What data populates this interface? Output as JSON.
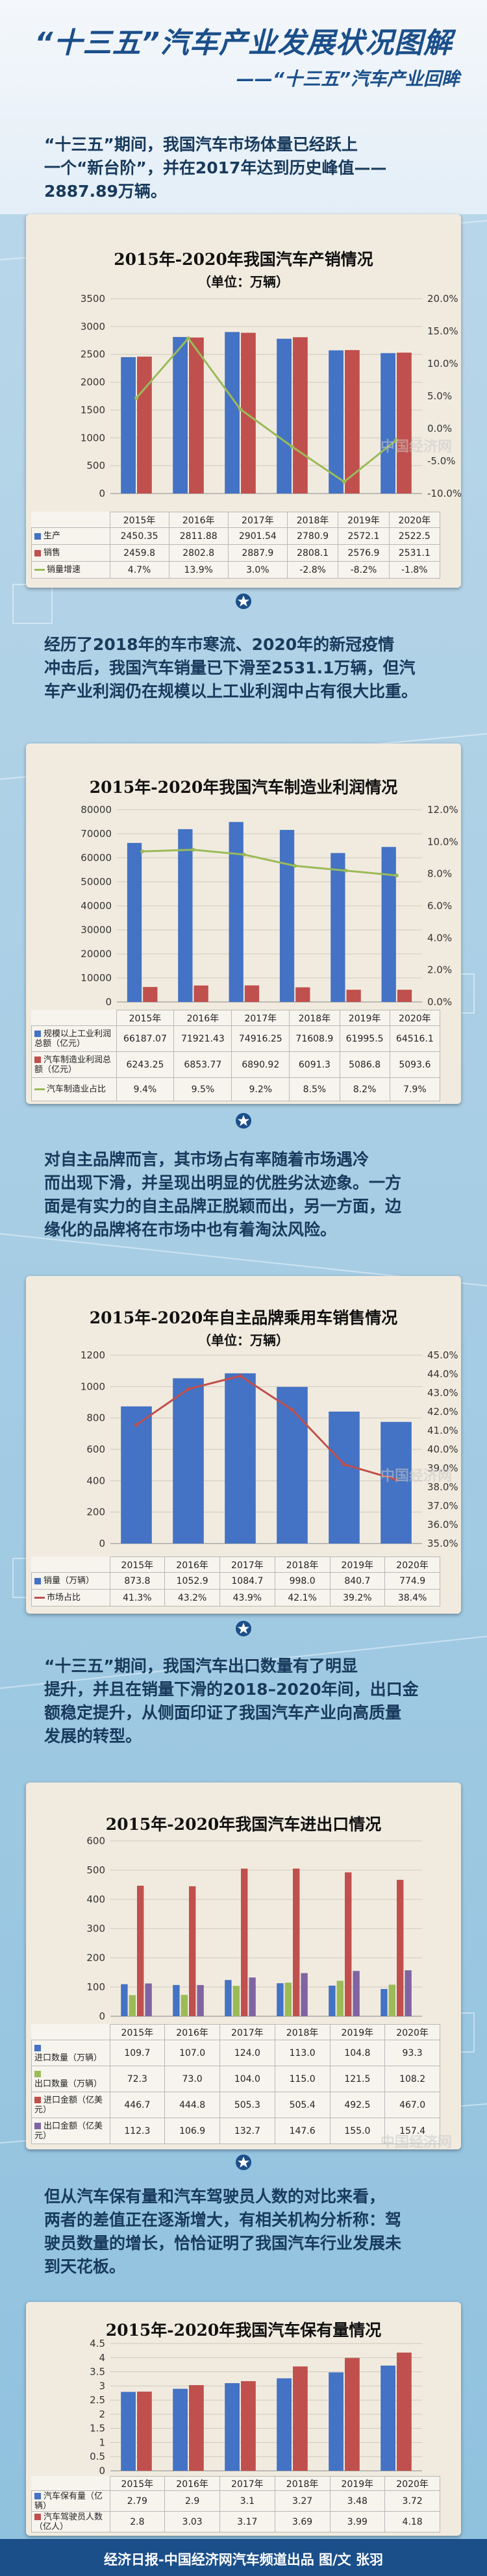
{
  "header": {
    "title": "“十三五”汽车产业发展状况图解",
    "subtitle": "——“十三五”汽车产业回眸"
  },
  "paragraphs": [
    [
      "“十三五”期间，我国汽车市场体量已经跃上",
      "一个“新台阶”，并在2017年达到历史峰值——",
      "2887.89万辆。"
    ],
    [
      "经历了2018年的车市寒流、2020年的新冠疫情",
      "冲击后，我国汽车销量已下滑至2531.1万辆，但汽",
      "车产业利润仍在规模以上工业利润中占有很大比重。"
    ],
    [
      "对自主品牌而言，其市场占有率随着市场遇冷",
      "而出现下滑，并呈现出明显的优胜劣汰迹象。一方",
      "面是有实力的自主品牌正脱颖而出，另一方面，边",
      "缘化的品牌将在市场中也有着淘汰风险。"
    ],
    [
      "“十三五”期间，我国汽车出口数量有了明显",
      "提升，并且在销量下滑的2018–2020年间，出口金",
      "额稳定提升，从侧面印证了我国汽车产业向高质量",
      "发展的转型。"
    ],
    [
      "但从汽车保有量和汽车驾驶员人数的对比来看，",
      "两者的差值正在逐渐增大，有相关机构分析称：驾",
      "驶员数量的增长，恰恰证明了我国汽车行业发展未",
      "到天花板。"
    ]
  ],
  "footer": "经济日报-中国经济网汽车频道出品  图/文 张羽",
  "watermark": "中国经济网",
  "colors": {
    "blue": "#4472c4",
    "red": "#c0504d",
    "green": "#9bbb59",
    "purple": "#8064a2",
    "navy": "#1b4f8a"
  },
  "chart_data": [
    {
      "type": "bar",
      "title": "2015年-2020年我国汽车产销情况",
      "unit": "（单位：万辆）",
      "categories": [
        "2015年",
        "2016年",
        "2017年",
        "2018年",
        "2019年",
        "2020年"
      ],
      "ylim": [
        0,
        3500
      ],
      "yticks": [
        "0",
        "500",
        "1000",
        "1500",
        "2000",
        "2500",
        "3000",
        "3500"
      ],
      "y2lim": [
        -10,
        20
      ],
      "y2ticks": [
        "-10.0%",
        "-5.0%",
        "0.0%",
        "5.0%",
        "10.0%",
        "15.0%",
        "20.0%"
      ],
      "series": [
        {
          "name": "生产",
          "kind": "bar",
          "values": [
            2450.35,
            2811.88,
            2901.54,
            2780.9,
            2572.1,
            2522.5
          ],
          "labels": [
            "2450.35",
            "2811.88",
            "2901.54",
            "2780.9",
            "2572.1",
            "2522.5"
          ]
        },
        {
          "name": "销售",
          "kind": "bar",
          "values": [
            2459.8,
            2802.8,
            2887.9,
            2808.1,
            2576.9,
            2531.1
          ],
          "labels": [
            "2459.8",
            "2802.8",
            "2887.9",
            "2808.1",
            "2576.9",
            "2531.1"
          ]
        },
        {
          "name": "销量增速",
          "kind": "line",
          "axis": "right",
          "values": [
            4.7,
            13.9,
            3.0,
            -2.8,
            -8.2,
            -1.8
          ],
          "labels": [
            "4.7%",
            "13.9%",
            "3.0%",
            "-2.8%",
            "-8.2%",
            "-1.8%"
          ]
        }
      ]
    },
    {
      "type": "bar",
      "title": "2015年-2020年我国汽车制造业利润情况",
      "categories": [
        "2015年",
        "2016年",
        "2017年",
        "2018年",
        "2019年",
        "2020年"
      ],
      "ylim": [
        0,
        80000
      ],
      "yticks": [
        "0",
        "10000",
        "20000",
        "30000",
        "40000",
        "50000",
        "60000",
        "70000",
        "80000"
      ],
      "y2lim": [
        0,
        12
      ],
      "y2ticks": [
        "0.0%",
        "2.0%",
        "4.0%",
        "6.0%",
        "8.0%",
        "10.0%",
        "12.0%"
      ],
      "series": [
        {
          "name": "规模以上工业利润总额（亿元）",
          "kind": "bar",
          "values": [
            66187.07,
            71921.43,
            74916.25,
            71608.9,
            61995.5,
            64516.1
          ],
          "labels": [
            "66187.07",
            "71921.43",
            "74916.25",
            "71608.9",
            "61995.5",
            "64516.1"
          ]
        },
        {
          "name": "汽车制造业利润总额（亿元）",
          "kind": "bar",
          "values": [
            6243.25,
            6853.77,
            6890.92,
            6091.3,
            5086.8,
            5093.6
          ],
          "labels": [
            "6243.25",
            "6853.77",
            "6890.92",
            "6091.3",
            "5086.8",
            "5093.6"
          ]
        },
        {
          "name": "汽车制造业占比",
          "kind": "line",
          "axis": "right",
          "values": [
            9.4,
            9.5,
            9.2,
            8.5,
            8.2,
            7.9
          ],
          "labels": [
            "9.4%",
            "9.5%",
            "9.2%",
            "8.5%",
            "8.2%",
            "7.9%"
          ]
        }
      ]
    },
    {
      "type": "bar",
      "title": "2015年-2020年自主品牌乘用车销售情况",
      "unit": "（单位：万辆）",
      "categories": [
        "2015年",
        "2016年",
        "2017年",
        "2018年",
        "2019年",
        "2020年"
      ],
      "ylim": [
        0,
        1200
      ],
      "yticks": [
        "0",
        "200",
        "400",
        "600",
        "800",
        "1000",
        "1200"
      ],
      "y2lim": [
        35,
        45
      ],
      "y2ticks": [
        "35.0%",
        "36.0%",
        "37.0%",
        "38.0%",
        "39.0%",
        "40.0%",
        "41.0%",
        "42.0%",
        "43.0%",
        "44.0%",
        "45.0%"
      ],
      "series": [
        {
          "name": "销量（万辆）",
          "kind": "bar",
          "values": [
            873.8,
            1052.9,
            1084.7,
            998.0,
            840.7,
            774.9
          ],
          "labels": [
            "873.8",
            "1052.9",
            "1084.7",
            "998.0",
            "840.7",
            "774.9"
          ]
        },
        {
          "name": "市场占比",
          "kind": "line",
          "axis": "right",
          "values": [
            41.3,
            43.2,
            43.9,
            42.1,
            39.2,
            38.4
          ],
          "labels": [
            "41.3%",
            "43.2%",
            "43.9%",
            "42.1%",
            "39.2%",
            "38.4%"
          ]
        }
      ]
    },
    {
      "type": "bar",
      "title": "2015年-2020年我国汽车进出口情况",
      "categories": [
        "2015年",
        "2016年",
        "2017年",
        "2018年",
        "2019年",
        "2020年"
      ],
      "ylim": [
        0,
        600
      ],
      "yticks": [
        "0",
        "100",
        "200",
        "300",
        "400",
        "500",
        "600"
      ],
      "series": [
        {
          "name": "进口数量（万辆）",
          "kind": "bar",
          "values": [
            109.7,
            107.0,
            124.0,
            113.0,
            104.8,
            93.3
          ],
          "labels": [
            "109.7",
            "107.0",
            "124.0",
            "113.0",
            "104.8",
            "93.3"
          ]
        },
        {
          "name": "出口数量（万辆）",
          "kind": "bar",
          "values": [
            72.3,
            73.0,
            104.0,
            115.0,
            121.5,
            108.2
          ],
          "labels": [
            "72.3",
            "73.0",
            "104.0",
            "115.0",
            "121.5",
            "108.2"
          ]
        },
        {
          "name": "进口金额（亿美元）",
          "kind": "bar",
          "values": [
            446.7,
            444.8,
            505.3,
            505.4,
            492.5,
            467.0
          ],
          "labels": [
            "446.7",
            "444.8",
            "505.3",
            "505.4",
            "492.5",
            "467.0"
          ]
        },
        {
          "name": "出口金额（亿美元）",
          "kind": "bar",
          "values": [
            112.3,
            106.9,
            132.7,
            147.6,
            155.0,
            157.4
          ],
          "labels": [
            "112.3",
            "106.9",
            "132.7",
            "147.6",
            "155.0",
            "157.4"
          ]
        }
      ]
    },
    {
      "type": "bar",
      "title": "2015年-2020年我国汽车保有量情况",
      "categories": [
        "2015年",
        "2016年",
        "2017年",
        "2018年",
        "2019年",
        "2020年"
      ],
      "ylim": [
        0,
        4.5
      ],
      "yticks": [
        "0",
        "0.5",
        "1",
        "1.5",
        "2",
        "2.5",
        "3",
        "3.5",
        "4",
        "4.5"
      ],
      "series": [
        {
          "name": "汽车保有量（亿辆）",
          "kind": "bar",
          "values": [
            2.79,
            2.9,
            3.1,
            3.27,
            3.48,
            3.72
          ],
          "labels": [
            "2.79",
            "2.9",
            "3.1",
            "3.27",
            "3.48",
            "3.72"
          ]
        },
        {
          "name": "汽车驾驶员人数（亿人）",
          "kind": "bar",
          "values": [
            2.8,
            3.03,
            3.17,
            3.69,
            3.99,
            4.18
          ],
          "labels": [
            "2.8",
            "3.03",
            "3.17",
            "3.69",
            "3.99",
            "4.18"
          ]
        }
      ]
    }
  ]
}
